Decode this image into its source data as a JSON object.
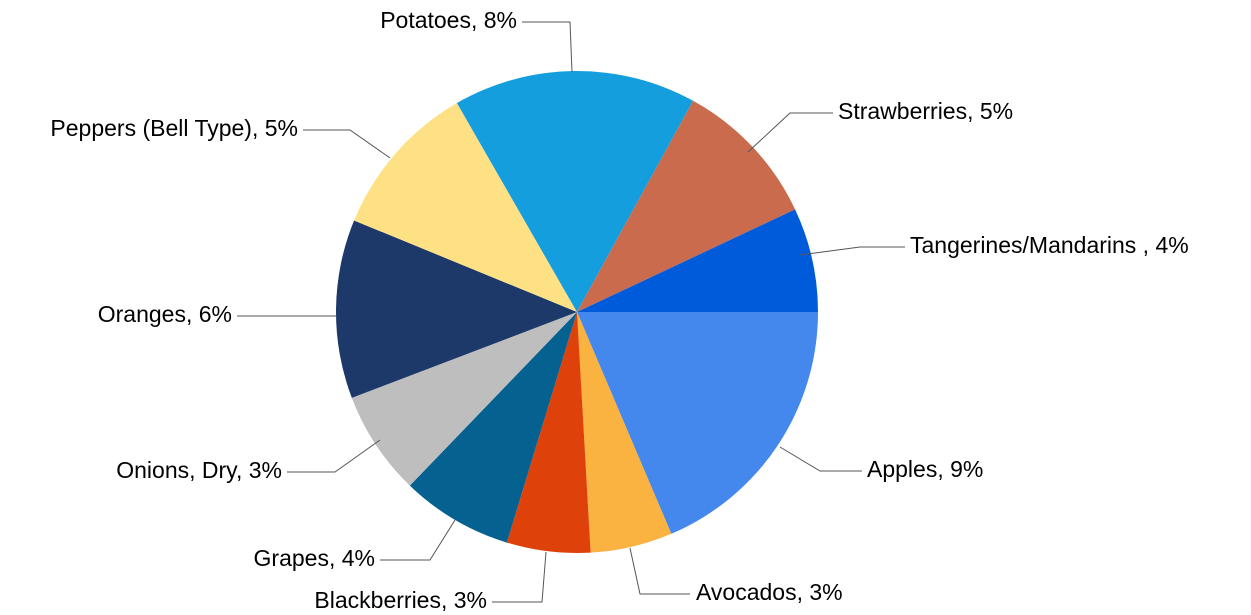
{
  "chart_data": {
    "type": "pie",
    "start_angle_deg": 90,
    "direction": "clockwise",
    "legend": "none",
    "slices": [
      {
        "label": "Apples, 9%",
        "category": "Apples",
        "percent": 9,
        "value": 18.6,
        "color": "#4488EE"
      },
      {
        "label": "Avocados, 3%",
        "category": "Avocados",
        "percent": 3,
        "value": 5.5,
        "color": "#FAB240"
      },
      {
        "label": "Blackberries, 3%",
        "category": "Blackberries",
        "percent": 3,
        "value": 5.6,
        "color": "#DE420A"
      },
      {
        "label": "Grapes, 4%",
        "category": "Grapes",
        "percent": 4,
        "value": 7.5,
        "color": "#05618F"
      },
      {
        "label": "Onions, Dry, 3%",
        "category": "Onions, Dry",
        "percent": 3,
        "value": 7.0,
        "color": "#BEBEBE"
      },
      {
        "label": "Oranges, 6%",
        "category": "Oranges",
        "percent": 6,
        "value": 12.0,
        "color": "#1C3969"
      },
      {
        "label": "Peppers (Bell Type), 5%",
        "category": "Peppers (Bell Type)",
        "percent": 5,
        "value": 10.5,
        "color": "#FEE085"
      },
      {
        "label": "Potatoes, 8%",
        "category": "Potatoes",
        "percent": 8,
        "value": 16.3,
        "color": "#149EDE"
      },
      {
        "label": "Strawberries, 5%",
        "category": "Strawberries",
        "percent": 5,
        "value": 10.0,
        "color": "#C96B4C"
      },
      {
        "label": "Tangerines/Mandarins , 4%",
        "category": "Tangerines/Mandarins ",
        "percent": 4,
        "value": 7.0,
        "color": "#005BDB"
      }
    ]
  }
}
